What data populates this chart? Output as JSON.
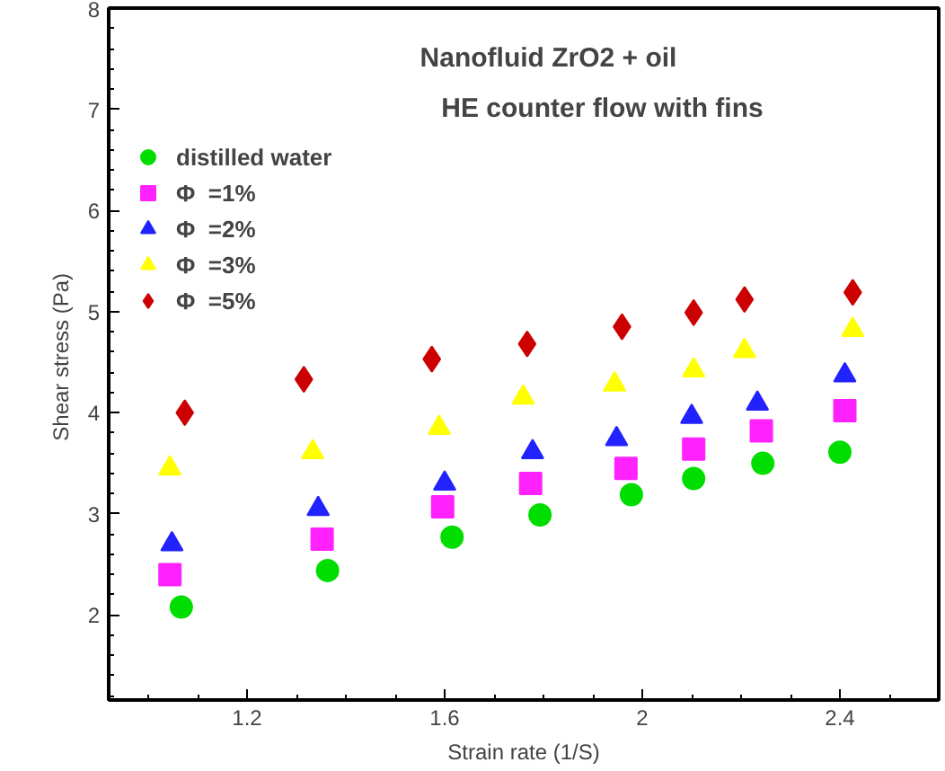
{
  "chart_data": {
    "type": "scatter",
    "title": "Nanofluid ZrO2 + oil",
    "subtitle": "HE counter flow with fins",
    "xlabel": "Strain rate (1/S)",
    "ylabel": "Shear stress  (Pa)",
    "xlim": [
      0.92,
      2.6
    ],
    "ylim": [
      1.16,
      8
    ],
    "xticks": [
      1.2,
      1.6,
      2,
      2.4
    ],
    "yticks": [
      2,
      3,
      4,
      5,
      6,
      7,
      8
    ],
    "grid": false,
    "legend": "top left",
    "series": [
      {
        "name": "distilled water",
        "color": "#00dd00",
        "marker": "circle",
        "x": [
          1.067,
          1.363,
          1.615,
          1.793,
          1.978,
          2.104,
          2.244,
          2.4
        ],
        "values": [
          2.08,
          2.44,
          2.77,
          2.99,
          3.19,
          3.35,
          3.5,
          3.61
        ]
      },
      {
        "name": "Φ  =1%",
        "color": "#ff22ff",
        "marker": "square",
        "x": [
          1.044,
          1.352,
          1.596,
          1.774,
          1.967,
          2.104,
          2.241,
          2.41
        ],
        "values": [
          2.4,
          2.75,
          3.07,
          3.3,
          3.45,
          3.64,
          3.82,
          4.02
        ]
      },
      {
        "name": "Φ  =2%",
        "color": "#2222ff",
        "marker": "triangle",
        "x": [
          1.048,
          1.344,
          1.6,
          1.778,
          1.948,
          2.1,
          2.233,
          2.41
        ],
        "values": [
          2.7,
          3.05,
          3.3,
          3.61,
          3.74,
          3.96,
          4.09,
          4.37
        ]
      },
      {
        "name": "Φ  =3%",
        "color": "#ffff00",
        "marker": "triangle",
        "x": [
          1.044,
          1.333,
          1.589,
          1.759,
          1.944,
          2.104,
          2.207,
          2.426
        ],
        "values": [
          3.45,
          3.61,
          3.85,
          4.15,
          4.28,
          4.42,
          4.61,
          4.82
        ]
      },
      {
        "name": "Φ  =5%",
        "color": "#cc0000",
        "marker": "diamond",
        "x": [
          1.074,
          1.315,
          1.574,
          1.767,
          1.959,
          2.104,
          2.207,
          2.426
        ],
        "values": [
          4.0,
          4.33,
          4.53,
          4.68,
          4.85,
          4.99,
          5.12,
          5.19
        ]
      }
    ]
  }
}
